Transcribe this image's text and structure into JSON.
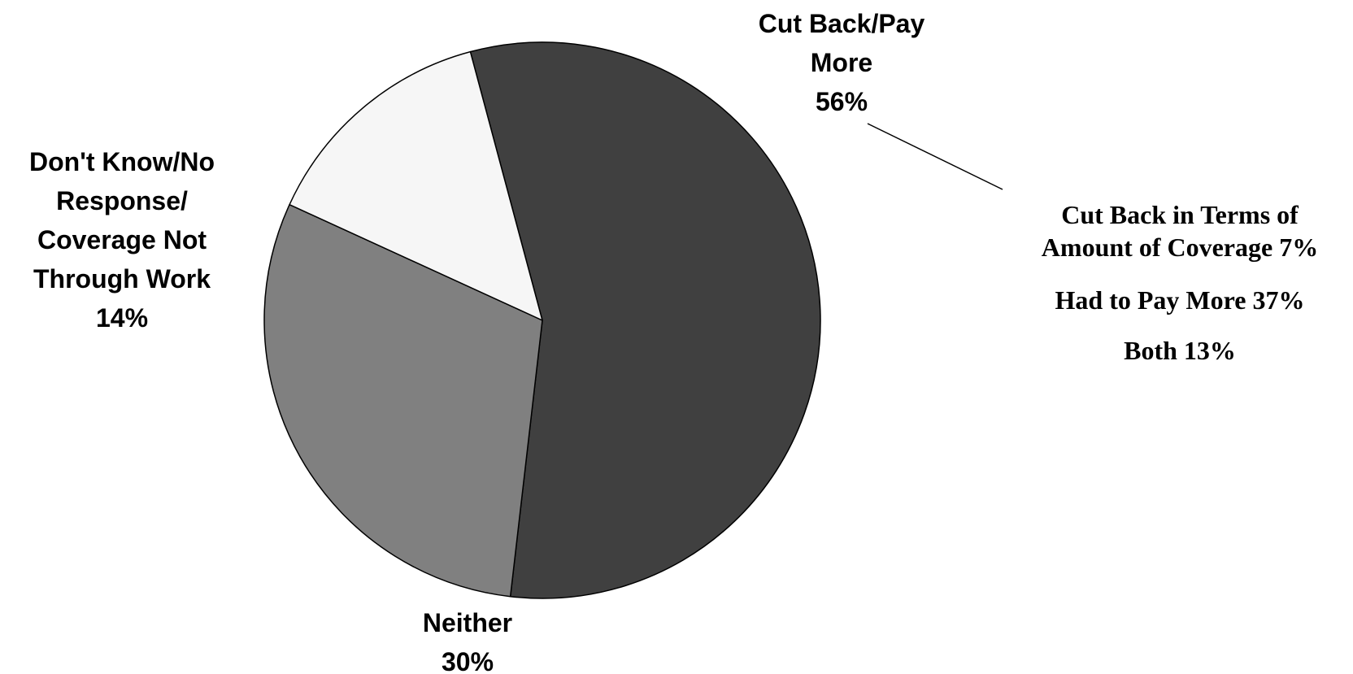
{
  "chart_data": {
    "type": "pie",
    "slices": [
      {
        "label_lines": [
          "Cut Back/Pay",
          "More"
        ],
        "value": 56,
        "value_label": "56%",
        "color": "#404040"
      },
      {
        "label_lines": [
          "Neither"
        ],
        "value": 30,
        "value_label": "30%",
        "color": "#808080"
      },
      {
        "label_lines": [
          "Don't Know/No",
          "Response/",
          "Coverage Not",
          "Through Work"
        ],
        "value": 14,
        "value_label": "14%",
        "color": "#f6f6f6"
      }
    ],
    "breakdown_of": "Cut Back/Pay More",
    "breakdown": [
      {
        "label_lines": [
          "Cut Back in Terms of",
          "Amount of Coverage   7%"
        ],
        "category": "Cut Back in Terms of Amount of Coverage",
        "value": 7
      },
      {
        "label_lines": [
          "Had to Pay More  37%"
        ],
        "category": "Had to Pay More",
        "value": 37
      },
      {
        "label_lines": [
          "Both   13%"
        ],
        "category": "Both",
        "value": 13
      }
    ]
  }
}
